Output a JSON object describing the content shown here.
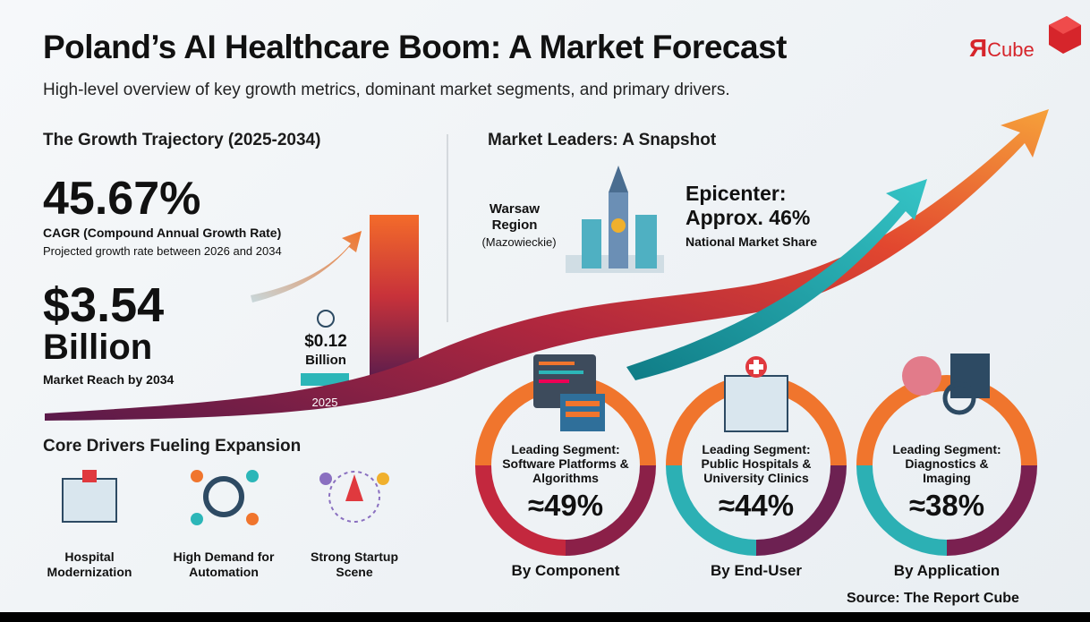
{
  "header": {
    "title": "Poland’s AI Healthcare Boom: A Market Forecast",
    "subtitle": "High-level overview of key growth metrics, dominant market segments, and primary drivers.",
    "logo": {
      "mark": "Я",
      "text": "Cube"
    }
  },
  "growth": {
    "heading": "The Growth Trajectory (2025-2034)",
    "cagr": "45.67%",
    "cagr_label": "CAGR (Compound Annual Growth Rate)",
    "cagr_note": "Projected growth rate between 2026 and 2034",
    "market_value": "$3.54",
    "market_unit": "Billion",
    "market_label": "Market Reach by 2034",
    "start_value": "$0.12",
    "start_unit": "Billion",
    "start_year": "2025"
  },
  "leaders": {
    "heading": "Market Leaders: A Snapshot",
    "region": "Warsaw Region",
    "region_sub": "(Mazowieckie)",
    "epicenter": "Epicenter:",
    "share": "Approx. 46%",
    "share_label": "National Market Share"
  },
  "segments": [
    {
      "label": "Leading Segment: Software Platforms & Algorithms",
      "value": "≈49%",
      "category": "By Component"
    },
    {
      "label": "Leading Segment: Public Hospitals & University Clinics",
      "value": "≈44%",
      "category": "By End-User"
    },
    {
      "label": "Leading Segment: Diagnostics & Imaging",
      "value": "≈38%",
      "category": "By Application"
    }
  ],
  "drivers": {
    "heading": "Core Drivers Fueling Expansion",
    "items": [
      "Hospital Modernization",
      "High Demand for Automation",
      "Strong Startup Scene"
    ]
  },
  "source": "Source: The Report Cube"
}
